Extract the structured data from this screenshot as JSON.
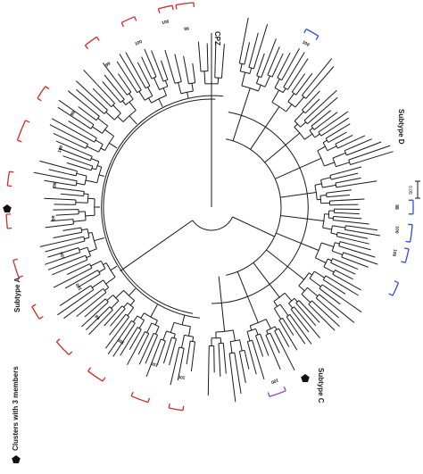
{
  "outgroup_label": "CPZ",
  "subtype_labels": {
    "a": "Subtype A",
    "c": "Subtype C",
    "d": "Subtype D"
  },
  "legend": {
    "label": "Clusters with 3 members",
    "marker_icon": "pentagon-icon"
  },
  "scale_bar": {
    "label": "0.05"
  },
  "colors": {
    "branch": "#1a1a1a",
    "subtype_a_bracket": "#d42a2a",
    "subtype_d_bracket": "#2a4fd4",
    "subtype_c_bracket": "#8a3fd1"
  },
  "bootstrap_values": [
    {
      "id": "a1",
      "value": "100"
    },
    {
      "id": "a2",
      "value": "99"
    },
    {
      "id": "a3",
      "value": "100"
    },
    {
      "id": "a4",
      "value": "99"
    },
    {
      "id": "a5",
      "value": "98"
    },
    {
      "id": "a6",
      "value": "100"
    },
    {
      "id": "a7",
      "value": "98"
    },
    {
      "id": "a8",
      "value": "99"
    },
    {
      "id": "a9",
      "value": "100"
    },
    {
      "id": "a10",
      "value": "100"
    },
    {
      "id": "a11",
      "value": "98"
    },
    {
      "id": "a12",
      "value": "100"
    },
    {
      "id": "a13",
      "value": "100"
    },
    {
      "id": "a14",
      "value": "100"
    },
    {
      "id": "d1",
      "value": "100"
    },
    {
      "id": "d2",
      "value": "98"
    },
    {
      "id": "d3",
      "value": "100"
    },
    {
      "id": "d4",
      "value": "100"
    },
    {
      "id": "c1",
      "value": "100"
    }
  ]
}
